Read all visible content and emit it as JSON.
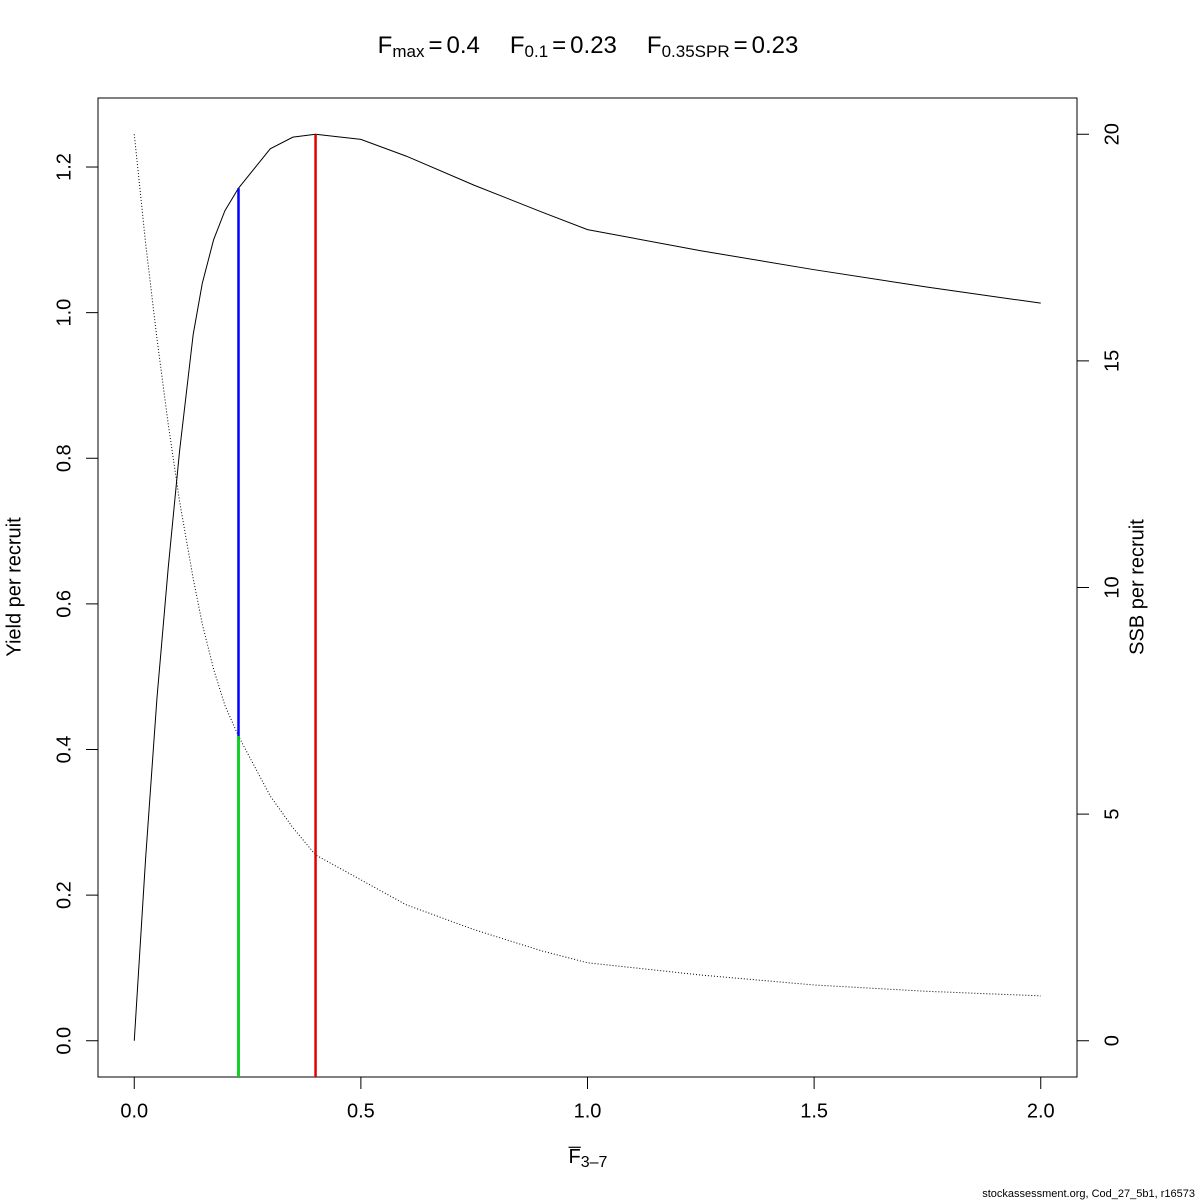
{
  "chart_data": {
    "type": "line",
    "title_parts": [
      {
        "symbol": "F",
        "subscript": "max",
        "relation": "=",
        "value": 0.4
      },
      {
        "symbol": "F",
        "subscript": "0.1",
        "relation": "=",
        "value": 0.23
      },
      {
        "symbol": "F",
        "subscript": "0.35SPR",
        "relation": "=",
        "value": 0.23
      }
    ],
    "x_label": {
      "symbol": "F",
      "subscript": "3–7"
    },
    "y_label": "Yield per recruit",
    "y2_label": "SSB per recruit",
    "x": [
      0,
      0.025,
      0.05,
      0.075,
      0.1,
      0.13,
      0.15,
      0.175,
      0.2,
      0.23,
      0.3,
      0.35,
      0.4,
      0.5,
      0.6,
      0.75,
      0.9,
      1.0,
      1.25,
      1.5,
      1.75,
      2.0
    ],
    "series": [
      {
        "color": "#000000",
        "linestyle": "solid",
        "values": [
          0,
          0.25,
          0.47,
          0.65,
          0.81,
          0.97,
          1.04,
          1.1,
          1.14,
          1.171,
          1.225,
          1.241,
          1.245,
          1.238,
          1.215,
          1.175,
          1.138,
          1.114,
          1.085,
          1.059,
          1.035,
          1.013
        ]
      },
      {
        "color": "#000000",
        "linestyle": "dotted",
        "axis": "y2",
        "values": [
          20,
          17.6,
          15.5,
          13.6,
          11.9,
          10.2,
          9.2,
          8.2,
          7.4,
          6.72,
          5.4,
          4.7,
          4.1,
          3.55,
          3.0,
          2.45,
          1.98,
          1.72,
          1.45,
          1.23,
          1.09,
          0.99
        ]
      }
    ],
    "reference_lines": [
      {
        "x": 0.4,
        "top": 1.245,
        "color": "#e00000"
      },
      {
        "x": 0.23,
        "top": 1.171,
        "color": "#0000ff"
      },
      {
        "x": 0.23,
        "top": 6.72,
        "axis": "y2",
        "color": "#00e000"
      }
    ],
    "xlim": [
      -0.08,
      2.08
    ],
    "xticks": [
      {
        "value": 0,
        "label": "0.0"
      },
      {
        "value": 0.5,
        "label": "0.5"
      },
      {
        "value": 1,
        "label": "1.0"
      },
      {
        "value": 1.5,
        "label": "1.5"
      },
      {
        "value": 2,
        "label": "2.0"
      }
    ],
    "ylim": [
      -0.0498,
      1.2948
    ],
    "yticks": [
      {
        "value": 0,
        "label": "0.0"
      },
      {
        "value": 0.2,
        "label": "0.2"
      },
      {
        "value": 0.4,
        "label": "0.4"
      },
      {
        "value": 0.6,
        "label": "0.6"
      },
      {
        "value": 0.8,
        "label": "0.8"
      },
      {
        "value": 1,
        "label": "1.0"
      },
      {
        "value": 1.2,
        "label": "1.2"
      }
    ],
    "y2lim": [
      -0.8,
      20.8
    ],
    "y2ticks": [
      0,
      5,
      10,
      15,
      20
    ],
    "footer": "stockassessment.org, Cod_27_5b1, r16573"
  }
}
